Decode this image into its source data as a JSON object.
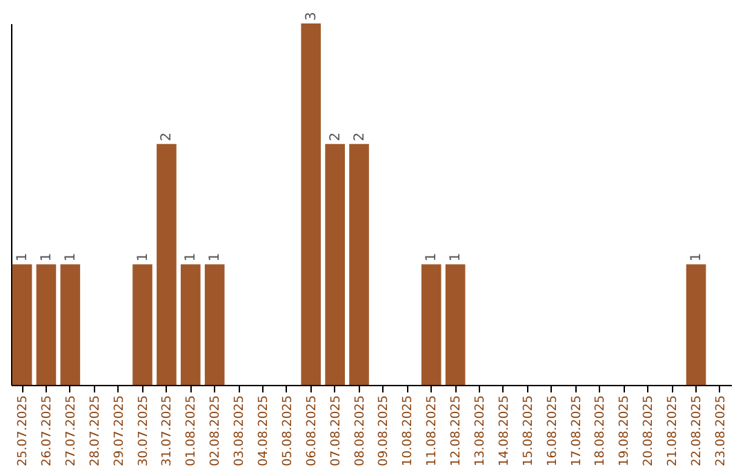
{
  "chart_data": {
    "type": "bar",
    "categories": [
      "25.07.2025",
      "26.07.2025",
      "27.07.2025",
      "28.07.2025",
      "29.07.2025",
      "30.07.2025",
      "31.07.2025",
      "01.08.2025",
      "02.08.2025",
      "03.08.2025",
      "04.08.2025",
      "05.08.2025",
      "06.08.2025",
      "07.08.2025",
      "08.08.2025",
      "09.08.2025",
      "10.08.2025",
      "11.08.2025",
      "12.08.2025",
      "13.08.2025",
      "14.08.2025",
      "15.08.2025",
      "16.08.2025",
      "17.08.2025",
      "18.08.2025",
      "19.08.2025",
      "20.08.2025",
      "21.08.2025",
      "22.08.2025",
      "23.08.2025"
    ],
    "values": [
      1,
      1,
      1,
      0,
      0,
      1,
      2,
      1,
      1,
      0,
      0,
      0,
      3,
      2,
      2,
      0,
      0,
      1,
      1,
      0,
      0,
      0,
      0,
      0,
      0,
      0,
      0,
      0,
      1,
      0
    ],
    "value_labels": [
      "1",
      "1",
      "1",
      null,
      null,
      "1",
      "2",
      "1",
      "1",
      null,
      null,
      null,
      "3",
      "2",
      "2",
      null,
      null,
      "1",
      "1",
      null,
      null,
      null,
      null,
      null,
      null,
      null,
      null,
      null,
      "1",
      null
    ],
    "color": "#a0582a",
    "grid": false
  }
}
